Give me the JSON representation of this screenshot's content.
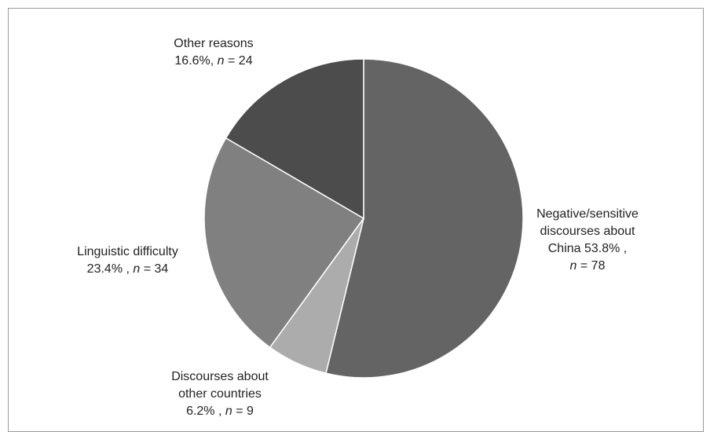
{
  "chart_data": {
    "type": "pie",
    "start_angle_deg": 0,
    "direction": "clockwise",
    "slices": [
      {
        "category": "Negative/sensitive discourses about China",
        "percent": 53.8,
        "n": 78,
        "color": "#646464",
        "label_lines": [
          "Negative/sensitive",
          "discourses about",
          "China 53.8% ,"
        ],
        "n_line_prefix": "",
        "n_value": "78"
      },
      {
        "category": "Discourses about other countries",
        "percent": 6.2,
        "n": 9,
        "color": "#acacac",
        "label_lines": [
          "Discourses about",
          "other countries"
        ],
        "n_line_prefix": "6.2% , ",
        "n_value": "9"
      },
      {
        "category": "Linguistic difficulty",
        "percent": 23.4,
        "n": 34,
        "color": "#808080",
        "label_lines": [
          "Linguistic difficulty"
        ],
        "n_line_prefix": "23.4% , ",
        "n_value": "34"
      },
      {
        "category": "Other reasons",
        "percent": 16.6,
        "n": 24,
        "color": "#4c4c4c",
        "label_lines": [
          "Other reasons"
        ],
        "n_line_prefix": "16.6%, ",
        "n_value": "24"
      }
    ],
    "n_symbol": "n",
    "n_equals": " = ",
    "slice_border_color": "#ffffff"
  }
}
